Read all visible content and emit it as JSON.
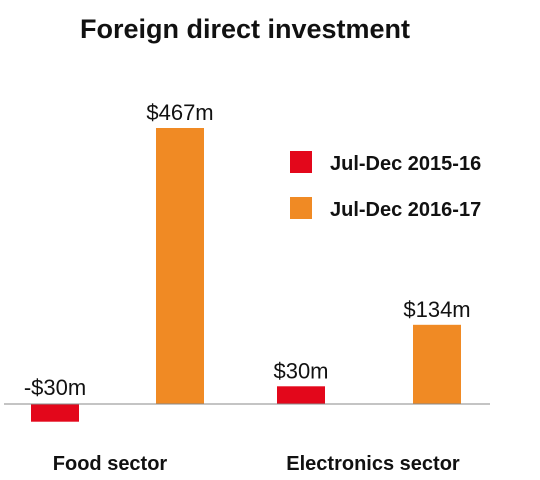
{
  "chart_data": {
    "type": "bar",
    "title": "Foreign direct investment",
    "xlabel": "",
    "ylabel": "",
    "categories": [
      "Food sector",
      "Electronics sector"
    ],
    "series": [
      {
        "name": "Jul-Dec 2015-16",
        "color": "#e3071b",
        "values": [
          -30,
          30
        ],
        "labels": [
          "-$30m",
          "$30m"
        ]
      },
      {
        "name": "Jul-Dec 2016-17",
        "color": "#f08a24",
        "values": [
          467,
          134
        ],
        "labels": [
          "$467m",
          "$134m"
        ]
      }
    ],
    "ylim": [
      -30,
      467
    ],
    "grid": false,
    "legend_position": "top-right"
  }
}
